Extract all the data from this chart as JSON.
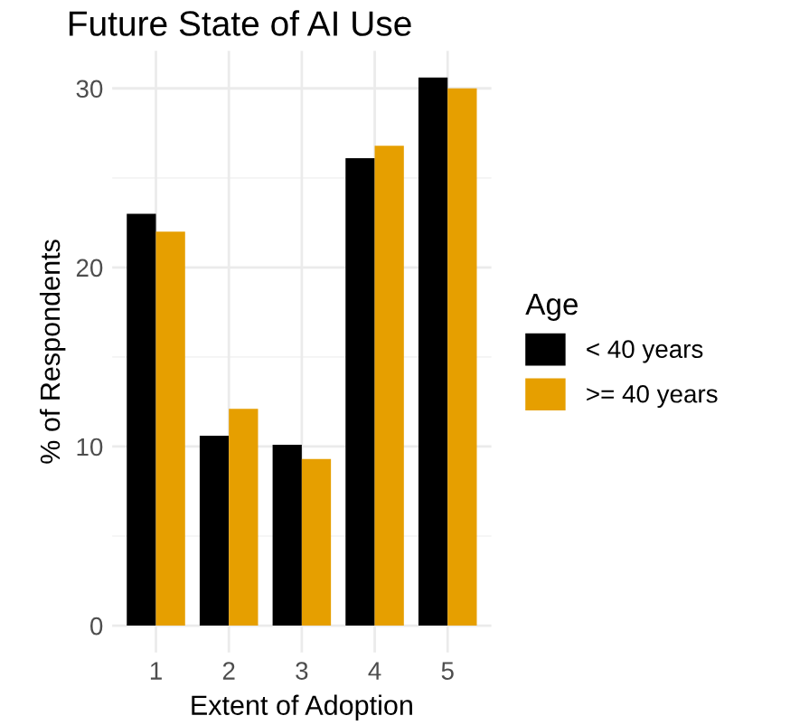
{
  "chart_data": {
    "type": "bar",
    "title": "Future State of AI Use",
    "xlabel": "Extent of Adoption",
    "ylabel": "% of Respondents",
    "legend_title": "Age",
    "categories": [
      "1",
      "2",
      "3",
      "4",
      "5"
    ],
    "series": [
      {
        "name": "< 40 years",
        "color": "#000000",
        "values": [
          23.0,
          10.6,
          10.1,
          26.1,
          30.6
        ]
      },
      {
        "name": ">= 40 years",
        "color": "#e69f00",
        "values": [
          22.0,
          12.1,
          9.3,
          26.8,
          30.0
        ]
      }
    ],
    "ylim": [
      -1.5,
      32.1
    ],
    "yticks": [
      0,
      10,
      20,
      30
    ],
    "grid": true,
    "legend": "right"
  }
}
